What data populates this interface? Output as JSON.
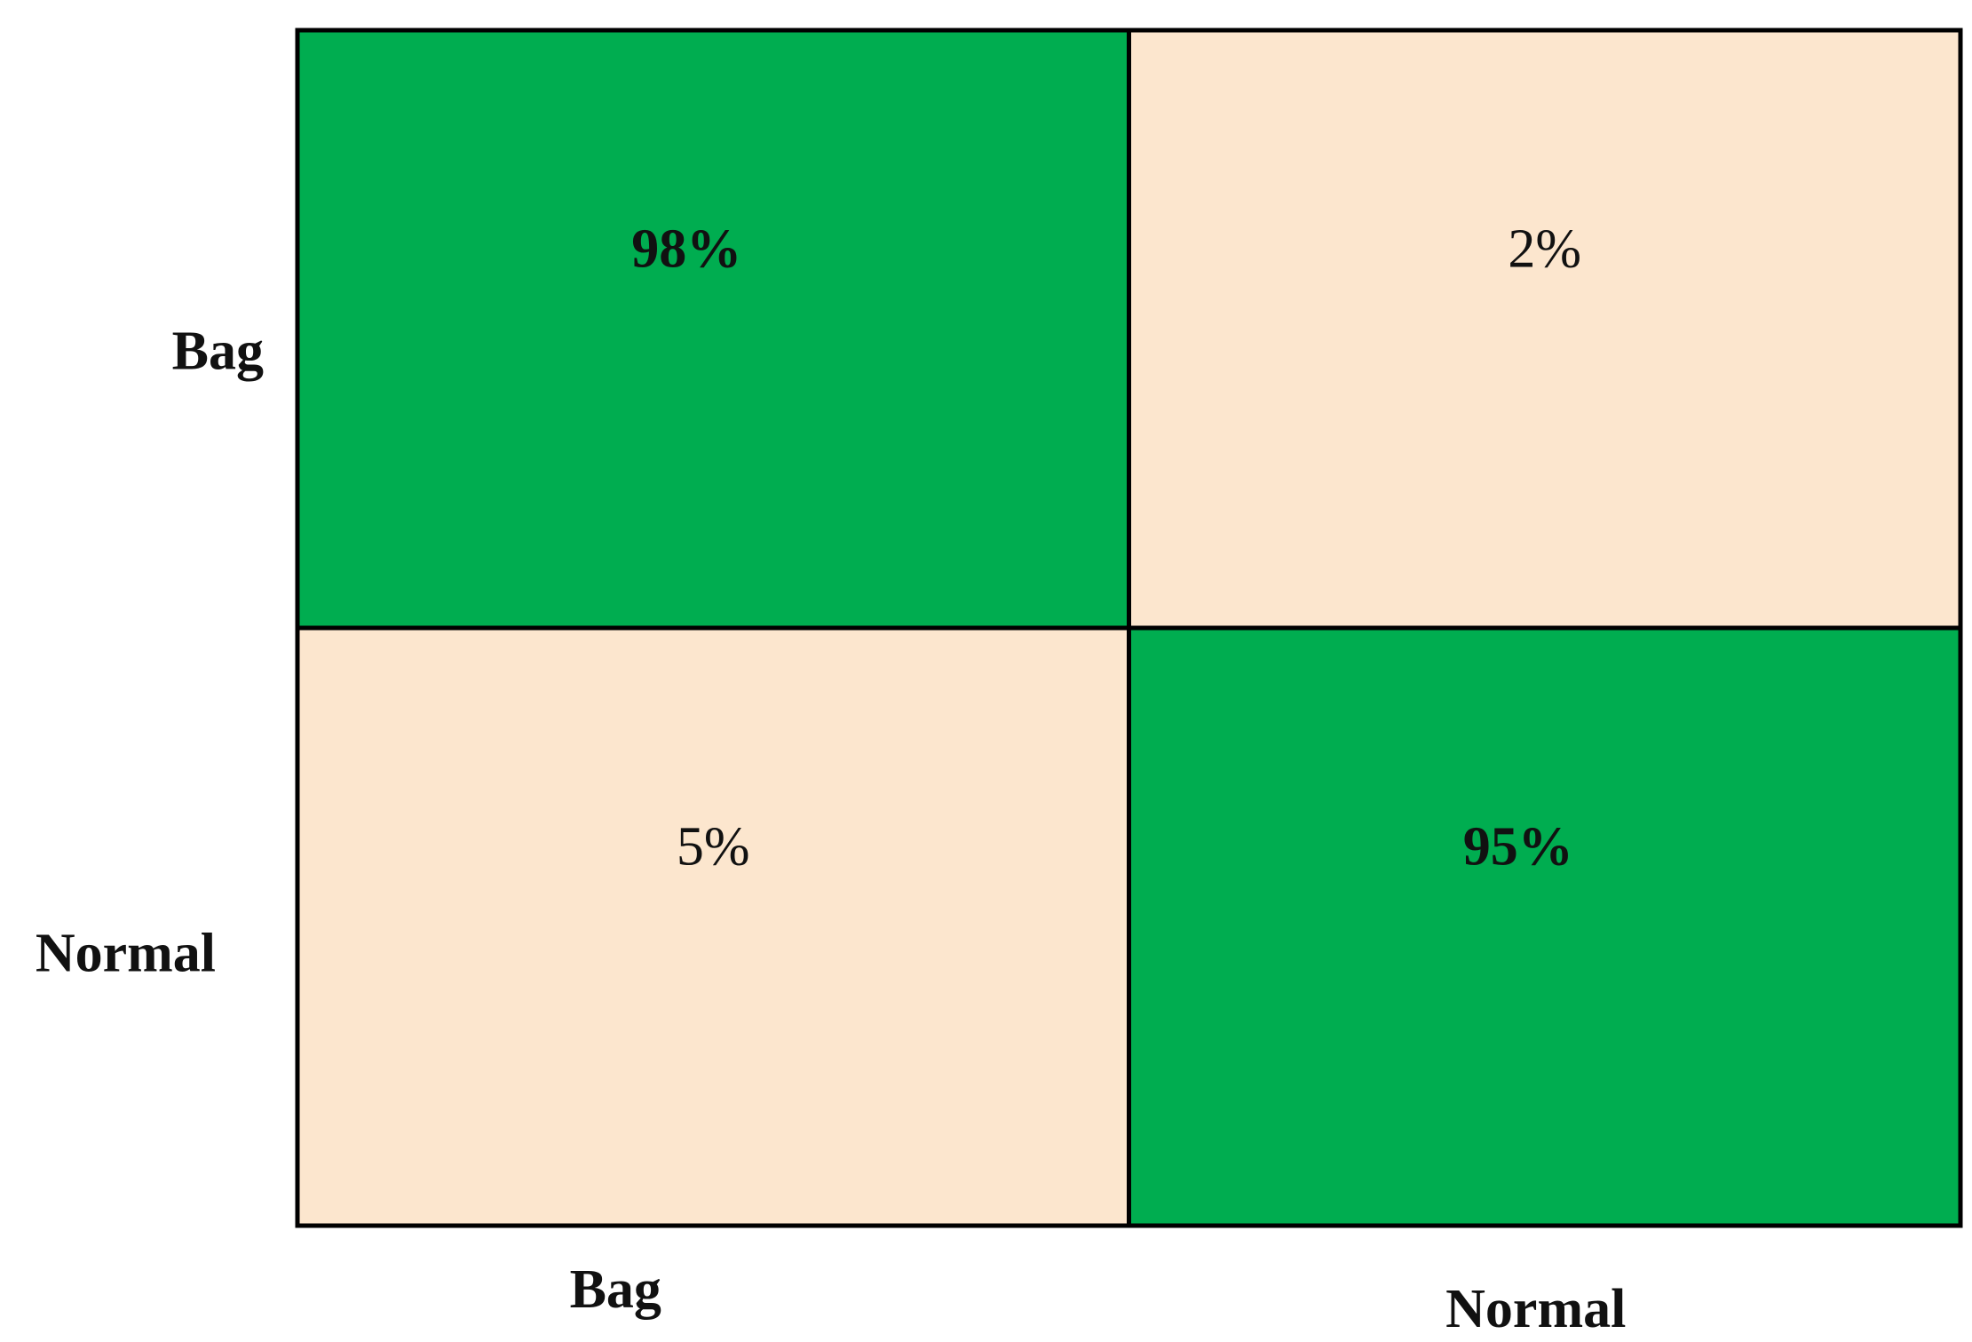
{
  "chart_data": {
    "type": "heatmap",
    "title": "",
    "xlabel": "",
    "ylabel": "",
    "row_labels": [
      "Bag",
      "Normal"
    ],
    "col_labels": [
      "Bag",
      "Normal"
    ],
    "values": [
      [
        98,
        2
      ],
      [
        5,
        95
      ]
    ],
    "cell_labels": [
      [
        "98%",
        "2%"
      ],
      [
        "5%",
        "95%"
      ]
    ],
    "diagonal_color": "#00AD50",
    "off_diagonal_color": "#FCE6CE",
    "border_color": "#000000"
  }
}
